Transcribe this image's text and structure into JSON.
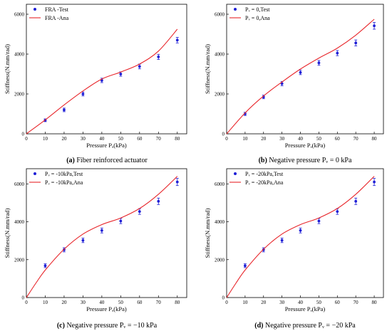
{
  "chart_data": [
    {
      "type": "scatter",
      "caption": {
        "letter": "(a)",
        "text": "Fiber reinforced actuator"
      },
      "xlabel": "Pressure Pₐ(kPa)",
      "ylabel": "Stiffness(N.mm/rad)",
      "xlim": [
        0,
        85
      ],
      "ylim": [
        0,
        6500
      ],
      "xticks": [
        0,
        10,
        20,
        30,
        40,
        50,
        60,
        70,
        80
      ],
      "yticks": [
        0,
        2000,
        4000,
        6000
      ],
      "legend": "top-left",
      "series": [
        {
          "name": "FRA -Test",
          "kind": "points",
          "x": [
            10,
            20,
            30,
            40,
            50,
            60,
            70,
            80
          ],
          "y": [
            680,
            1200,
            2000,
            2680,
            3000,
            3380,
            3860,
            4700
          ],
          "err": [
            70,
            90,
            100,
            110,
            110,
            120,
            130,
            140
          ]
        },
        {
          "name": "FRA -Ana",
          "kind": "line",
          "x": [
            0,
            10,
            20,
            30,
            40,
            50,
            60,
            70,
            80
          ],
          "y": [
            0,
            700,
            1450,
            2150,
            2750,
            3100,
            3500,
            4150,
            5250
          ]
        }
      ]
    },
    {
      "type": "scatter",
      "caption": {
        "letter": "(b)",
        "text": "Negative pressure Pᵥ = 0 kPa"
      },
      "xlabel": "Pressure Pₐ(kPa)",
      "ylabel": "Stiffness(N.mm/rad)",
      "xlim": [
        0,
        85
      ],
      "ylim": [
        0,
        6500
      ],
      "xticks": [
        0,
        10,
        20,
        30,
        40,
        50,
        60,
        70,
        80
      ],
      "yticks": [
        0,
        2000,
        4000,
        6000
      ],
      "legend": "top-left",
      "series": [
        {
          "name": "Pᵥ = 0,Test",
          "kind": "points",
          "x": [
            10,
            20,
            30,
            40,
            50,
            60,
            70,
            80
          ],
          "y": [
            1000,
            1850,
            2520,
            3080,
            3560,
            4050,
            4560,
            5420
          ],
          "err": [
            80,
            90,
            110,
            110,
            120,
            130,
            150,
            170
          ]
        },
        {
          "name": "Pᵥ = 0,Ana",
          "kind": "line",
          "x": [
            0,
            10,
            20,
            30,
            40,
            50,
            60,
            70,
            80
          ],
          "y": [
            0,
            1050,
            1900,
            2600,
            3250,
            3800,
            4300,
            4950,
            5750
          ]
        }
      ]
    },
    {
      "type": "scatter",
      "caption": {
        "letter": "(c)",
        "text": "Negative pressure Pᵥ = −10 kPa"
      },
      "xlabel": "Pressure Pₐ(kPa)",
      "ylabel": "Stiffness(N.mm/rad)",
      "xlim": [
        0,
        85
      ],
      "ylim": [
        0,
        6800
      ],
      "xticks": [
        0,
        10,
        20,
        30,
        40,
        50,
        60,
        70,
        80
      ],
      "yticks": [
        0,
        2000,
        4000,
        6000
      ],
      "legend": "top-left",
      "series": [
        {
          "name": "Pᵥ = -10kPa,Test",
          "kind": "points",
          "x": [
            10,
            20,
            30,
            40,
            50,
            60,
            70,
            80
          ],
          "y": [
            1680,
            2520,
            3020,
            3540,
            4040,
            4540,
            5080,
            6100
          ],
          "err": [
            100,
            110,
            120,
            130,
            140,
            150,
            170,
            190
          ]
        },
        {
          "name": "Pᵥ = -10kPa,Ana",
          "kind": "line",
          "x": [
            0,
            5,
            10,
            20,
            30,
            40,
            50,
            60,
            70,
            80
          ],
          "y": [
            0,
            750,
            1450,
            2550,
            3350,
            3850,
            4200,
            4700,
            5450,
            6400
          ]
        }
      ]
    },
    {
      "type": "scatter",
      "caption": {
        "letter": "(d)",
        "text": "Negative pressure Pᵥ = −20 kPa"
      },
      "xlabel": "Pressure Pₐ(kPa)",
      "ylabel": "Stiffness(N.mm/rad)",
      "xlim": [
        0,
        85
      ],
      "ylim": [
        0,
        6800
      ],
      "xticks": [
        0,
        10,
        20,
        30,
        40,
        50,
        60,
        70,
        80
      ],
      "yticks": [
        0,
        2000,
        4000,
        6000
      ],
      "legend": "top-left",
      "series": [
        {
          "name": "Pᵥ = -20kPa,Test",
          "kind": "points",
          "x": [
            10,
            20,
            30,
            40,
            50,
            60,
            70,
            80
          ],
          "y": [
            1680,
            2520,
            3020,
            3540,
            4040,
            4540,
            5080,
            6100
          ],
          "err": [
            100,
            110,
            120,
            130,
            140,
            150,
            170,
            190
          ]
        },
        {
          "name": "Pᵥ = -20kPa,Ana",
          "kind": "line",
          "x": [
            0,
            5,
            10,
            20,
            30,
            40,
            50,
            60,
            70,
            80
          ],
          "y": [
            0,
            750,
            1450,
            2550,
            3350,
            3850,
            4200,
            4700,
            5450,
            6400
          ]
        }
      ]
    }
  ],
  "colors": {
    "test": "#1f1fd6",
    "ana": "#e8262b",
    "axis": "#000000"
  }
}
